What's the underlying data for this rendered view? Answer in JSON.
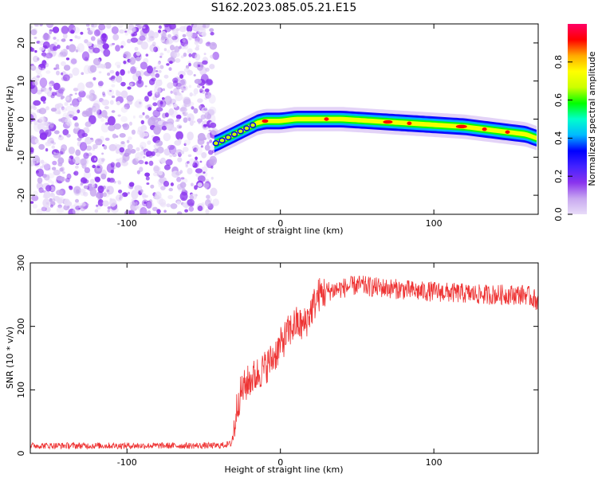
{
  "title": "S162.2023.085.05.21.E15",
  "colors": {
    "series": "#ee3333",
    "colormap": [
      "#e8dcf8",
      "#c8a8f0",
      "#8a33ee",
      "#4422ff",
      "#0000ff",
      "#00bbff",
      "#00ffcc",
      "#00ff00",
      "#ccff00",
      "#ffff00",
      "#ffaa00",
      "#ff0000",
      "#ff0066"
    ]
  },
  "chart_data": [
    {
      "type": "heatmap",
      "xlabel": "Height of straight line (km)",
      "ylabel": "Frequency (Hz)",
      "xlim": [
        -163,
        168
      ],
      "ylim": [
        -25,
        25
      ],
      "xticks": [
        -100,
        0,
        100
      ],
      "yticks": [
        20,
        10,
        0,
        -10,
        -20
      ],
      "ridge": {
        "x": [
          -43,
          -40,
          -35,
          -30,
          -25,
          -20,
          -15,
          -10,
          -5,
          0,
          10,
          20,
          40,
          60,
          80,
          100,
          120,
          140,
          160,
          167
        ],
        "y": [
          -6.5,
          -6,
          -5,
          -4,
          -3,
          -2,
          -1,
          -0.5,
          -0.5,
          -0.5,
          0,
          0,
          0,
          -0.5,
          -1,
          -1.5,
          -2,
          -3,
          -4,
          -5
        ]
      },
      "colorbar": {
        "label": "Normalized spectral amplitude",
        "range": [
          0,
          1
        ],
        "ticks": [
          "0.0",
          "0.2",
          "0.4",
          "0.6",
          "0.8"
        ]
      }
    },
    {
      "type": "line",
      "xlabel": "Height of straight line (km)",
      "ylabel": "SNR (10 * v/v)",
      "xlim": [
        -163,
        168
      ],
      "ylim": [
        0,
        300
      ],
      "xticks": [
        -100,
        0,
        100
      ],
      "yticks": [
        0,
        100,
        200,
        300
      ],
      "series": [
        {
          "x": [
            -163,
            -140,
            -120,
            -100,
            -80,
            -60,
            -40,
            -32,
            -30,
            -28,
            -25,
            -20,
            -15,
            -10,
            -5,
            0,
            5,
            10,
            15,
            20,
            25,
            30,
            40,
            50,
            60,
            70,
            80,
            90,
            100,
            110,
            120,
            130,
            140,
            150,
            160,
            168
          ],
          "y": [
            12,
            12,
            12,
            12,
            12,
            12,
            12,
            15,
            40,
            80,
            100,
            115,
            125,
            135,
            150,
            170,
            190,
            205,
            200,
            225,
            250,
            255,
            260,
            265,
            262,
            260,
            258,
            255,
            255,
            253,
            252,
            250,
            250,
            250,
            250,
            240
          ]
        }
      ]
    }
  ]
}
